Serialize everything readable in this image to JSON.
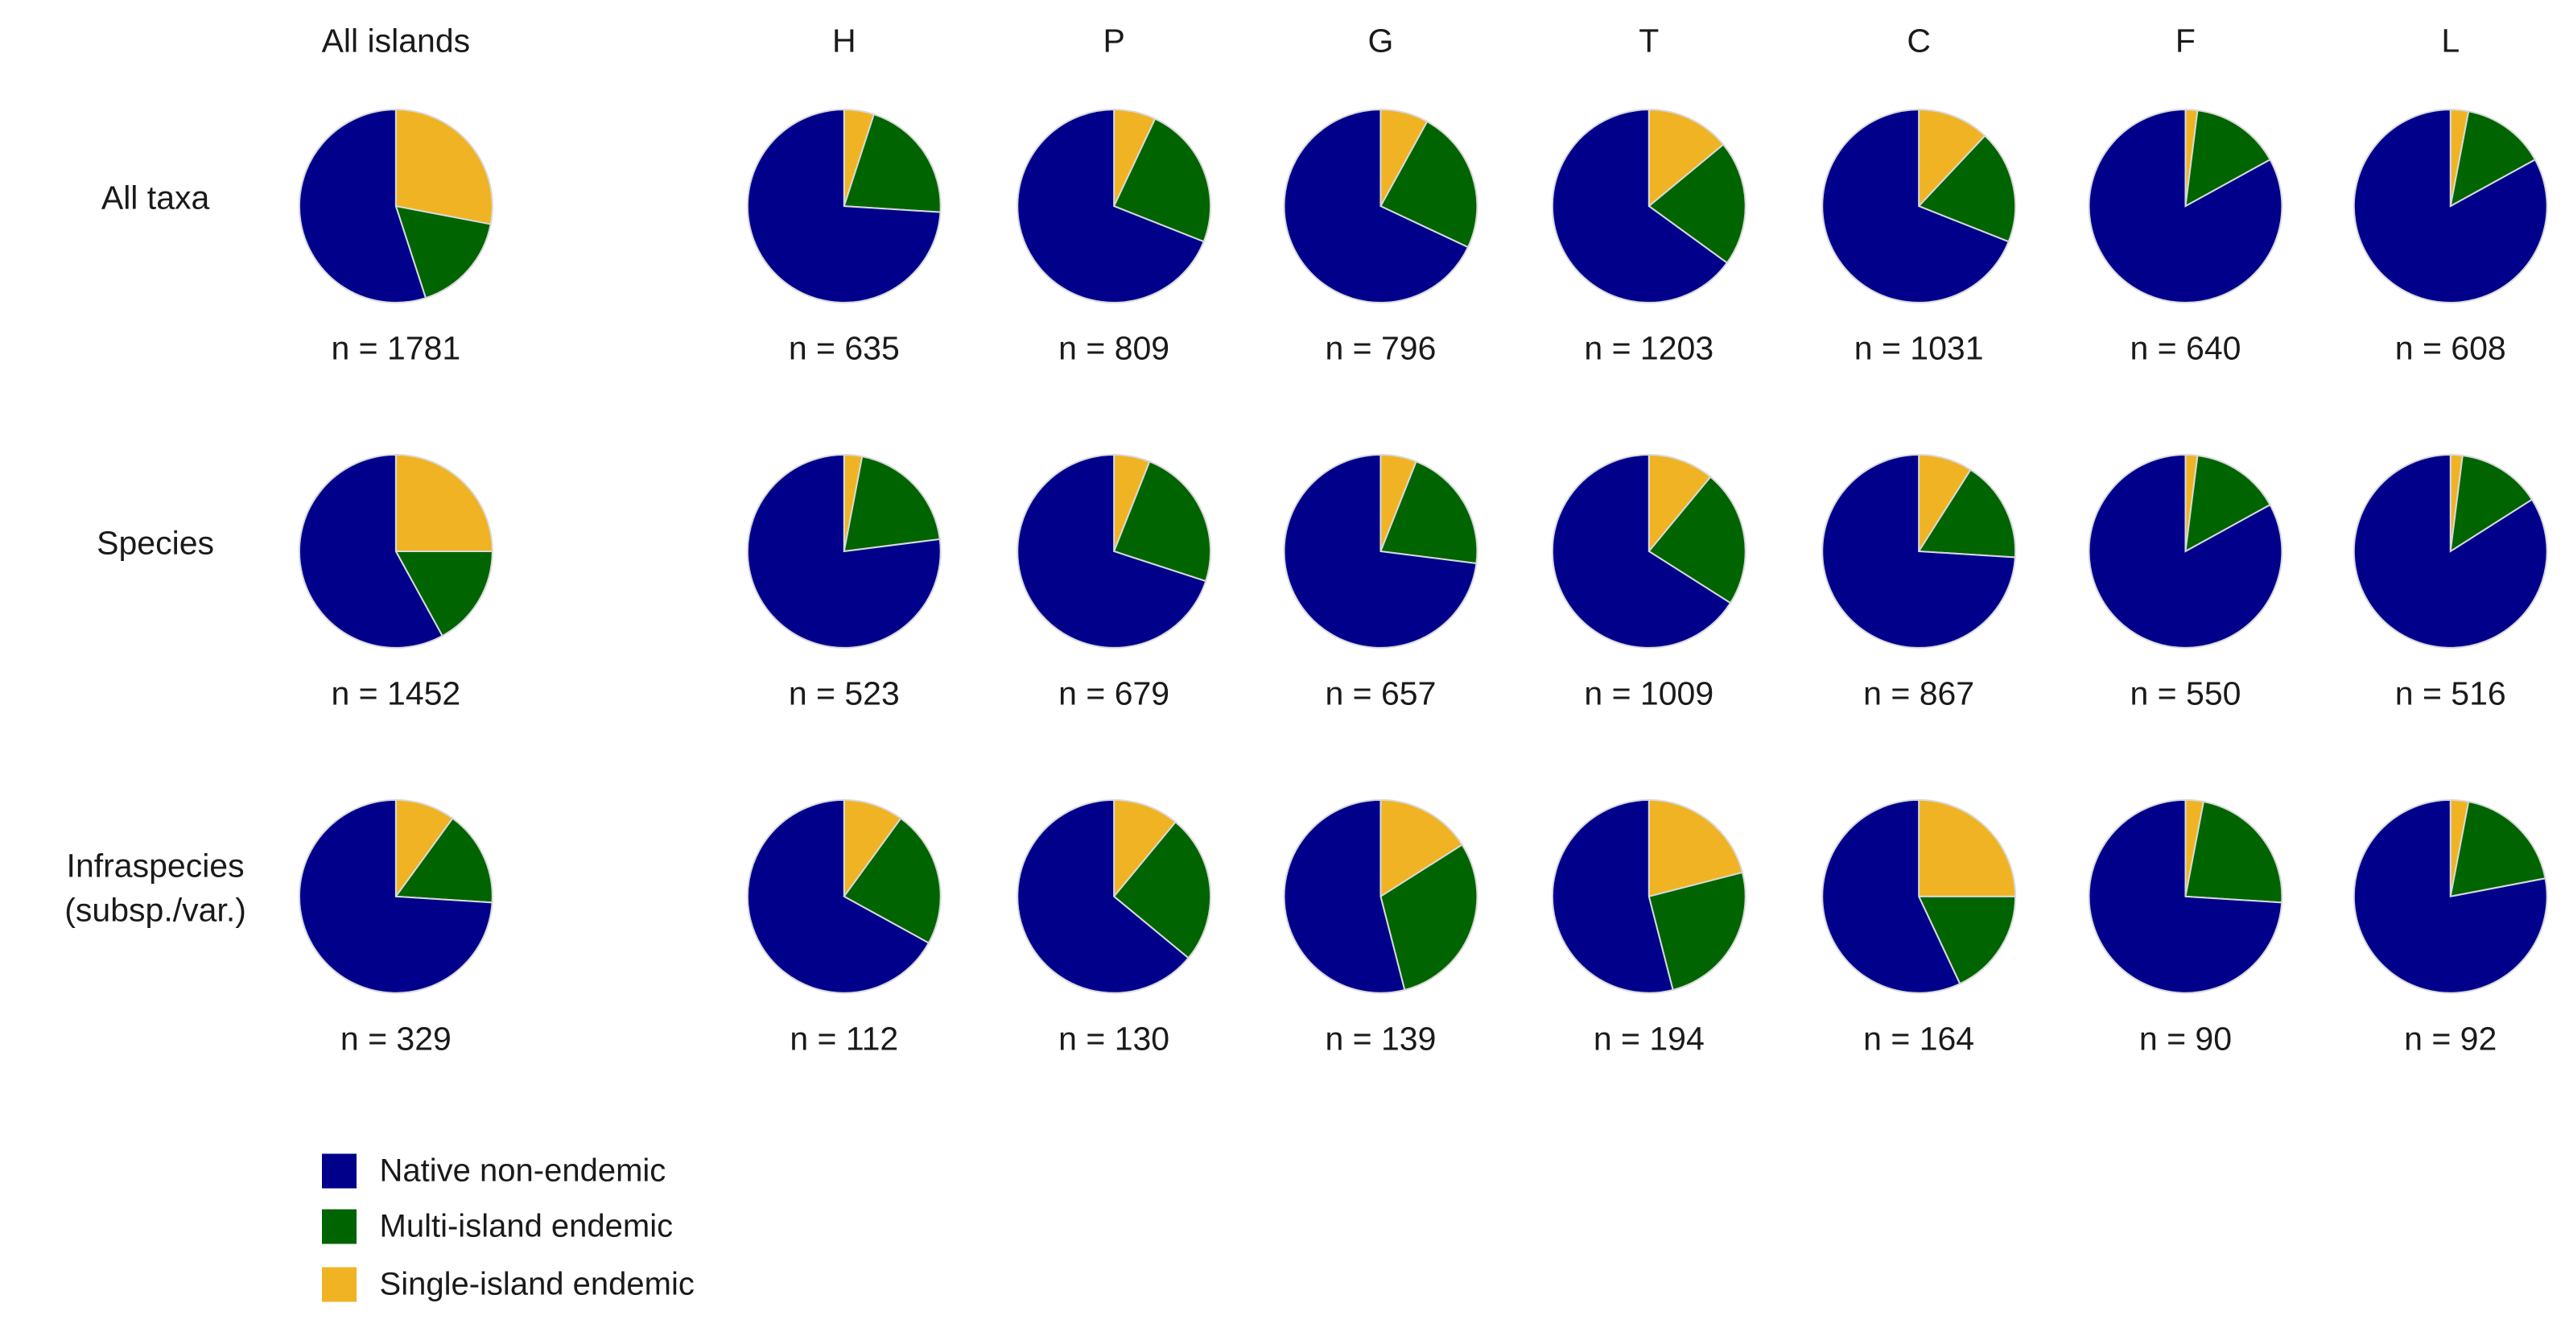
{
  "chart_data": {
    "type": "pie",
    "columns": [
      "All islands",
      "H",
      "P",
      "G",
      "T",
      "C",
      "F",
      "L"
    ],
    "rows": [
      "All taxa",
      "Species",
      "Infraspecies (subsp./var.)"
    ],
    "series": [
      {
        "name": "Native non-endemic",
        "color": "#00008b"
      },
      {
        "name": "Multi-island endemic",
        "color": "#006400"
      },
      {
        "name": "Single-island endemic",
        "color": "#f0b323"
      }
    ],
    "pies": [
      [
        {
          "values": [
            55,
            17,
            28
          ],
          "label": "n = 1781"
        },
        {
          "values": [
            74,
            21,
            5
          ],
          "label": "n = 635"
        },
        {
          "values": [
            69,
            24,
            7
          ],
          "label": "n = 809"
        },
        {
          "values": [
            68,
            24,
            8
          ],
          "label": "n = 796"
        },
        {
          "values": [
            65,
            21,
            14
          ],
          "label": "n = 1203"
        },
        {
          "values": [
            69,
            19,
            12
          ],
          "label": "n = 1031"
        },
        {
          "values": [
            83,
            15,
            2
          ],
          "label": "n = 640"
        },
        {
          "values": [
            83,
            14,
            3
          ],
          "label": "n = 608"
        }
      ],
      [
        {
          "values": [
            58,
            17,
            25
          ],
          "label": "n = 1452"
        },
        {
          "values": [
            77,
            20,
            3
          ],
          "label": "n = 523"
        },
        {
          "values": [
            70,
            24,
            6
          ],
          "label": "n = 679"
        },
        {
          "values": [
            73,
            21,
            6
          ],
          "label": "n = 657"
        },
        {
          "values": [
            66,
            23,
            11
          ],
          "label": "n = 1009"
        },
        {
          "values": [
            74,
            17,
            9
          ],
          "label": "n = 867"
        },
        {
          "values": [
            83,
            15,
            2
          ],
          "label": "n = 550"
        },
        {
          "values": [
            84,
            14,
            2
          ],
          "label": "n = 516"
        }
      ],
      [
        {
          "values": [
            74,
            16,
            10
          ],
          "label": "n = 329"
        },
        {
          "values": [
            67,
            23,
            10
          ],
          "label": "n = 112"
        },
        {
          "values": [
            64,
            25,
            11
          ],
          "label": "n = 130"
        },
        {
          "values": [
            54,
            30,
            16
          ],
          "label": "n = 139"
        },
        {
          "values": [
            54,
            25,
            21
          ],
          "label": "n = 194"
        },
        {
          "values": [
            57,
            18,
            25
          ],
          "label": "n = 164"
        },
        {
          "values": [
            74,
            23,
            3
          ],
          "label": "n = 90"
        },
        {
          "values": [
            78,
            19,
            3
          ],
          "label": "n = 92"
        }
      ]
    ]
  }
}
